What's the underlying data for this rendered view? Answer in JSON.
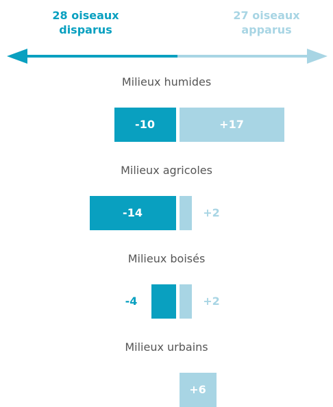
{
  "chart_data": {
    "type": "diverging-bar",
    "categories": [
      "Milieux humides",
      "Milieux agricoles",
      "Milieux boisés",
      "Milieux urbains"
    ],
    "series": [
      {
        "name": "28 oiseaux disparus",
        "color": "#09a0c0",
        "values": [
          -10,
          -14,
          -4,
          null
        ]
      },
      {
        "name": "27 oiseaux apparus",
        "color": "#a8d5e4",
        "values": [
          17,
          2,
          2,
          6
        ],
        "value_labels": [
          "+17",
          "+2",
          "+2",
          "+6"
        ]
      }
    ]
  }
}
